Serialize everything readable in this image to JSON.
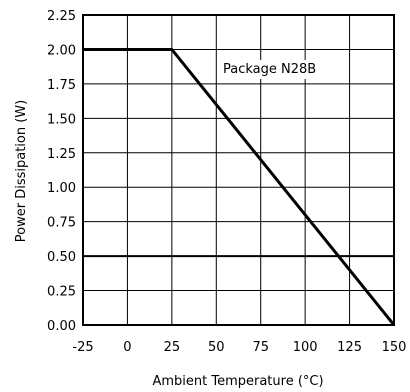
{
  "chart_data": {
    "type": "line",
    "xlabel": "Ambient Temperature (°C)",
    "ylabel": "Power Dissipation (W)",
    "xlim": [
      -25,
      150
    ],
    "ylim": [
      0,
      2.25
    ],
    "x_ticks": [
      "-25",
      "0",
      "25",
      "50",
      "75",
      "100",
      "125",
      "150"
    ],
    "y_ticks": [
      "0.00",
      "0.25",
      "0.50",
      "0.75",
      "1.00",
      "1.25",
      "1.50",
      "1.75",
      "2.00",
      "2.25"
    ],
    "grid": true,
    "annotation": "Package N28B",
    "series": [
      {
        "x": [
          -25,
          25,
          150
        ],
        "y": [
          2.0,
          2.0,
          0.0
        ]
      }
    ],
    "reference_line": {
      "y": 0.5
    },
    "colors": {
      "line": "#000000",
      "grid": "#000000",
      "background": "#ffffff"
    }
  }
}
